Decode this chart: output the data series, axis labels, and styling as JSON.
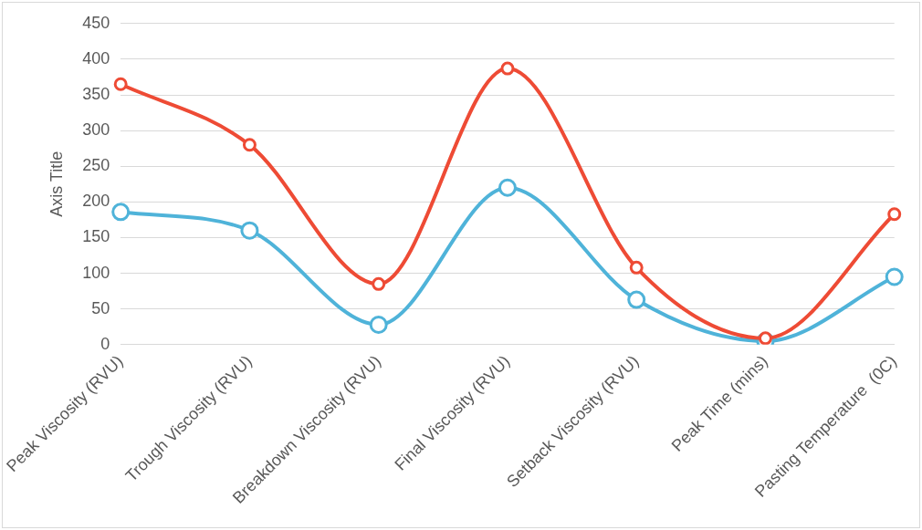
{
  "chart_data": {
    "type": "line",
    "ylabel": "Axis Title",
    "categories": [
      "Peak Viscosity (RVU)",
      "Trough Viscosity (RVU)",
      "Breakdown Viscosity (RVU)",
      "Final Viscosity (RVU)",
      "Setback Viscosity (RVU)",
      "Peak Time (mins)",
      "Pasting Temperature  (0C)"
    ],
    "series": [
      {
        "color": "#ee4b35",
        "values": [
          365,
          280,
          85,
          387,
          108,
          9,
          183
        ]
      },
      {
        "color": "#4fb3d9",
        "values": [
          186,
          160,
          28,
          220,
          63,
          5,
          95
        ]
      }
    ],
    "ylim": [
      0,
      450
    ],
    "yticks": [
      0,
      50,
      100,
      150,
      200,
      250,
      300,
      350,
      400,
      450
    ],
    "grid": "y",
    "marker": "circle",
    "line_style": "solid",
    "legend": false
  }
}
